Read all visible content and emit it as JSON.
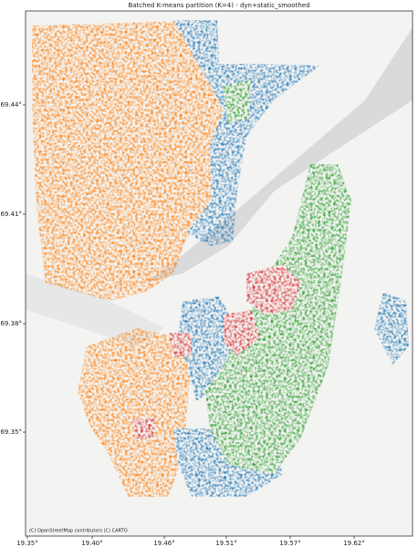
{
  "title": "Batched K-means partition (K=4) - dyn+static_smoothed",
  "x_axis": {
    "ticks": [
      "19.35°",
      "19.40°",
      "19.46°",
      "19.51°",
      "19.57°",
      "19.62°"
    ]
  },
  "y_axis": {
    "ticks": [
      "69.44°",
      "69.41°",
      "69.38°",
      "69.35°"
    ]
  },
  "attribution": "(C) OpenStreetMap contributors (C) CARTO"
}
